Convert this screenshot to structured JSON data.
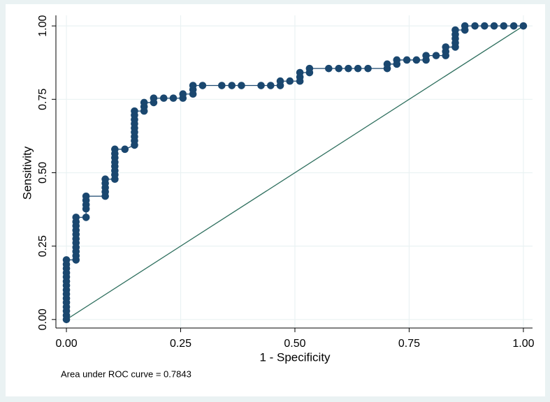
{
  "chart_data": {
    "type": "roc",
    "x_label": "1 - Specificity",
    "y_label": "Sensitivity",
    "note": "Area under ROC curve = 0.7843",
    "color": "#1a476f",
    "reference_color": "#2e6f5e",
    "grid": true,
    "xlim": [
      -0.023,
      1.02
    ],
    "ylim": [
      -0.029,
      1.036
    ],
    "xticks": [
      {
        "value": 0,
        "label": "0.00"
      },
      {
        "value": 0.25,
        "label": "0.25"
      },
      {
        "value": 0.5,
        "label": "0.50"
      },
      {
        "value": 0.75,
        "label": "0.75"
      },
      {
        "value": 1,
        "label": "1.00"
      }
    ],
    "yticks": [
      {
        "value": 0,
        "label": "0.00"
      },
      {
        "value": 0.25,
        "label": "0.25"
      },
      {
        "value": 0.5,
        "label": "0.50"
      },
      {
        "value": 0.75,
        "label": "0.75"
      },
      {
        "value": 1,
        "label": "1.00"
      }
    ],
    "x": [
      0,
      0,
      0,
      0,
      0,
      0,
      0,
      0,
      0,
      0,
      0,
      0,
      0,
      0,
      0,
      0.021,
      0.021,
      0.021,
      0.021,
      0.021,
      0.021,
      0.021,
      0.021,
      0.021,
      0.021,
      0.021,
      0.043,
      0.043,
      0.043,
      0.043,
      0.043,
      0.085,
      0.085,
      0.085,
      0.085,
      0.085,
      0.106,
      0.106,
      0.106,
      0.106,
      0.106,
      0.106,
      0.106,
      0.106,
      0.128,
      0.149,
      0.149,
      0.149,
      0.149,
      0.149,
      0.149,
      0.149,
      0.149,
      0.149,
      0.17,
      0.17,
      0.17,
      0.191,
      0.191,
      0.213,
      0.234,
      0.255,
      0.255,
      0.277,
      0.277,
      0.277,
      0.298,
      0.34,
      0.362,
      0.383,
      0.426,
      0.447,
      0.468,
      0.468,
      0.489,
      0.511,
      0.511,
      0.511,
      0.532,
      0.532,
      0.574,
      0.596,
      0.617,
      0.638,
      0.66,
      0.702,
      0.702,
      0.723,
      0.723,
      0.745,
      0.766,
      0.787,
      0.787,
      0.809,
      0.83,
      0.83,
      0.83,
      0.851,
      0.851,
      0.851,
      0.851,
      0.851,
      0.872,
      0.872,
      0.894,
      0.915,
      0.936,
      0.957,
      0.979,
      1
    ],
    "y": [
      0,
      0.014,
      0.029,
      0.043,
      0.058,
      0.072,
      0.087,
      0.101,
      0.116,
      0.13,
      0.145,
      0.159,
      0.174,
      0.188,
      0.203,
      0.203,
      0.217,
      0.232,
      0.246,
      0.261,
      0.275,
      0.29,
      0.304,
      0.319,
      0.333,
      0.348,
      0.348,
      0.377,
      0.391,
      0.406,
      0.42,
      0.42,
      0.435,
      0.449,
      0.464,
      0.478,
      0.478,
      0.493,
      0.507,
      0.522,
      0.536,
      0.551,
      0.565,
      0.58,
      0.58,
      0.594,
      0.609,
      0.623,
      0.638,
      0.652,
      0.667,
      0.681,
      0.696,
      0.71,
      0.71,
      0.725,
      0.739,
      0.739,
      0.754,
      0.754,
      0.754,
      0.754,
      0.768,
      0.768,
      0.783,
      0.797,
      0.797,
      0.797,
      0.797,
      0.797,
      0.797,
      0.797,
      0.797,
      0.812,
      0.812,
      0.812,
      0.826,
      0.841,
      0.841,
      0.855,
      0.855,
      0.855,
      0.855,
      0.855,
      0.855,
      0.855,
      0.87,
      0.87,
      0.884,
      0.884,
      0.884,
      0.884,
      0.899,
      0.899,
      0.899,
      0.913,
      0.928,
      0.928,
      0.942,
      0.957,
      0.971,
      0.986,
      0.986,
      1,
      1,
      1,
      1,
      1,
      1,
      1
    ]
  }
}
